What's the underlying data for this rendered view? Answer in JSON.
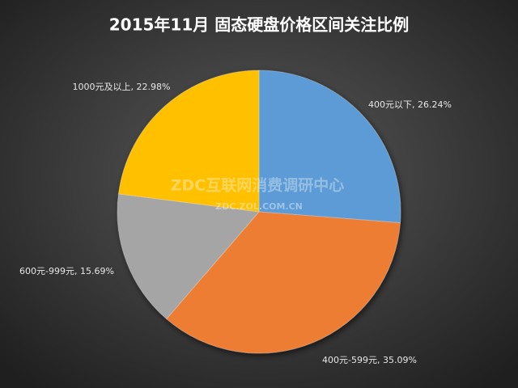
{
  "chart_data": {
    "type": "pie",
    "title": "2015年11月  固态硬盘价格区间关注比例",
    "values": [
      26.24,
      35.09,
      15.69,
      22.98
    ],
    "value_labels": [
      "400元以下, 26.24%",
      "400元-599元, 35.09%",
      "600元-999元, 15.69%",
      "1000元及以上, 22.98%"
    ],
    "colors": [
      "#5b9bd5",
      "#ed7d31",
      "#a5a5a5",
      "#ffc000"
    ],
    "watermark": "ZDC互联网消费调研中心",
    "watermark_url": "ZDC.ZOL.COM.CN"
  }
}
